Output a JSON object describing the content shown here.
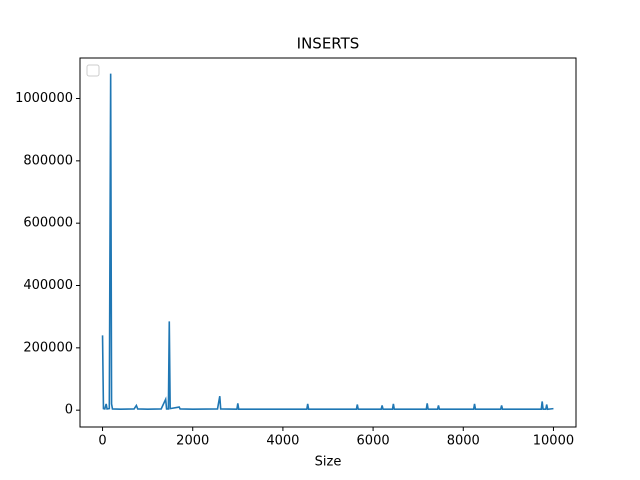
{
  "chart_data": {
    "type": "line",
    "title": "INSERTS",
    "xlabel": "Size",
    "x": [
      0,
      20,
      50,
      80,
      100,
      150,
      180,
      200,
      220,
      400,
      700,
      750,
      780,
      1000,
      1300,
      1400,
      1420,
      1460,
      1480,
      1500,
      1700,
      1720,
      2000,
      2550,
      2600,
      2620,
      2980,
      3000,
      3020,
      3500,
      4000,
      4530,
      4550,
      4570,
      5000,
      5630,
      5650,
      5670,
      6180,
      6200,
      6220,
      6430,
      6450,
      6470,
      7000,
      7180,
      7200,
      7220,
      7430,
      7450,
      7470,
      8000,
      8230,
      8250,
      8270,
      8500,
      8830,
      8850,
      8870,
      9300,
      9730,
      9750,
      9770,
      9830,
      9850,
      9870,
      10000
    ],
    "series": [
      {
        "color": "#1f77b4",
        "values": [
          240000,
          5000,
          4000,
          20000,
          4000,
          5000,
          1080000,
          20000,
          4000,
          3000,
          4000,
          15000,
          4000,
          3000,
          4000,
          35000,
          4000,
          4000,
          285000,
          5000,
          10000,
          4000,
          3000,
          4000,
          45000,
          4000,
          3000,
          22000,
          3000,
          3000,
          3000,
          3000,
          20000,
          3000,
          3000,
          3000,
          18000,
          3000,
          3000,
          15000,
          3000,
          3000,
          20000,
          3000,
          3000,
          3000,
          22000,
          3000,
          3000,
          15000,
          3000,
          3000,
          3000,
          20000,
          3000,
          3000,
          3000,
          15000,
          3000,
          3000,
          3000,
          28000,
          3000,
          3000,
          18000,
          3000,
          5000
        ]
      }
    ],
    "xlim": [
      -500,
      10500
    ],
    "ylim": [
      -54000,
      1130000
    ],
    "xticks": [
      0,
      2000,
      4000,
      6000,
      8000,
      10000
    ],
    "yticks": [
      0,
      200000,
      400000,
      600000,
      800000,
      1000000
    ],
    "legend": "upper left"
  }
}
